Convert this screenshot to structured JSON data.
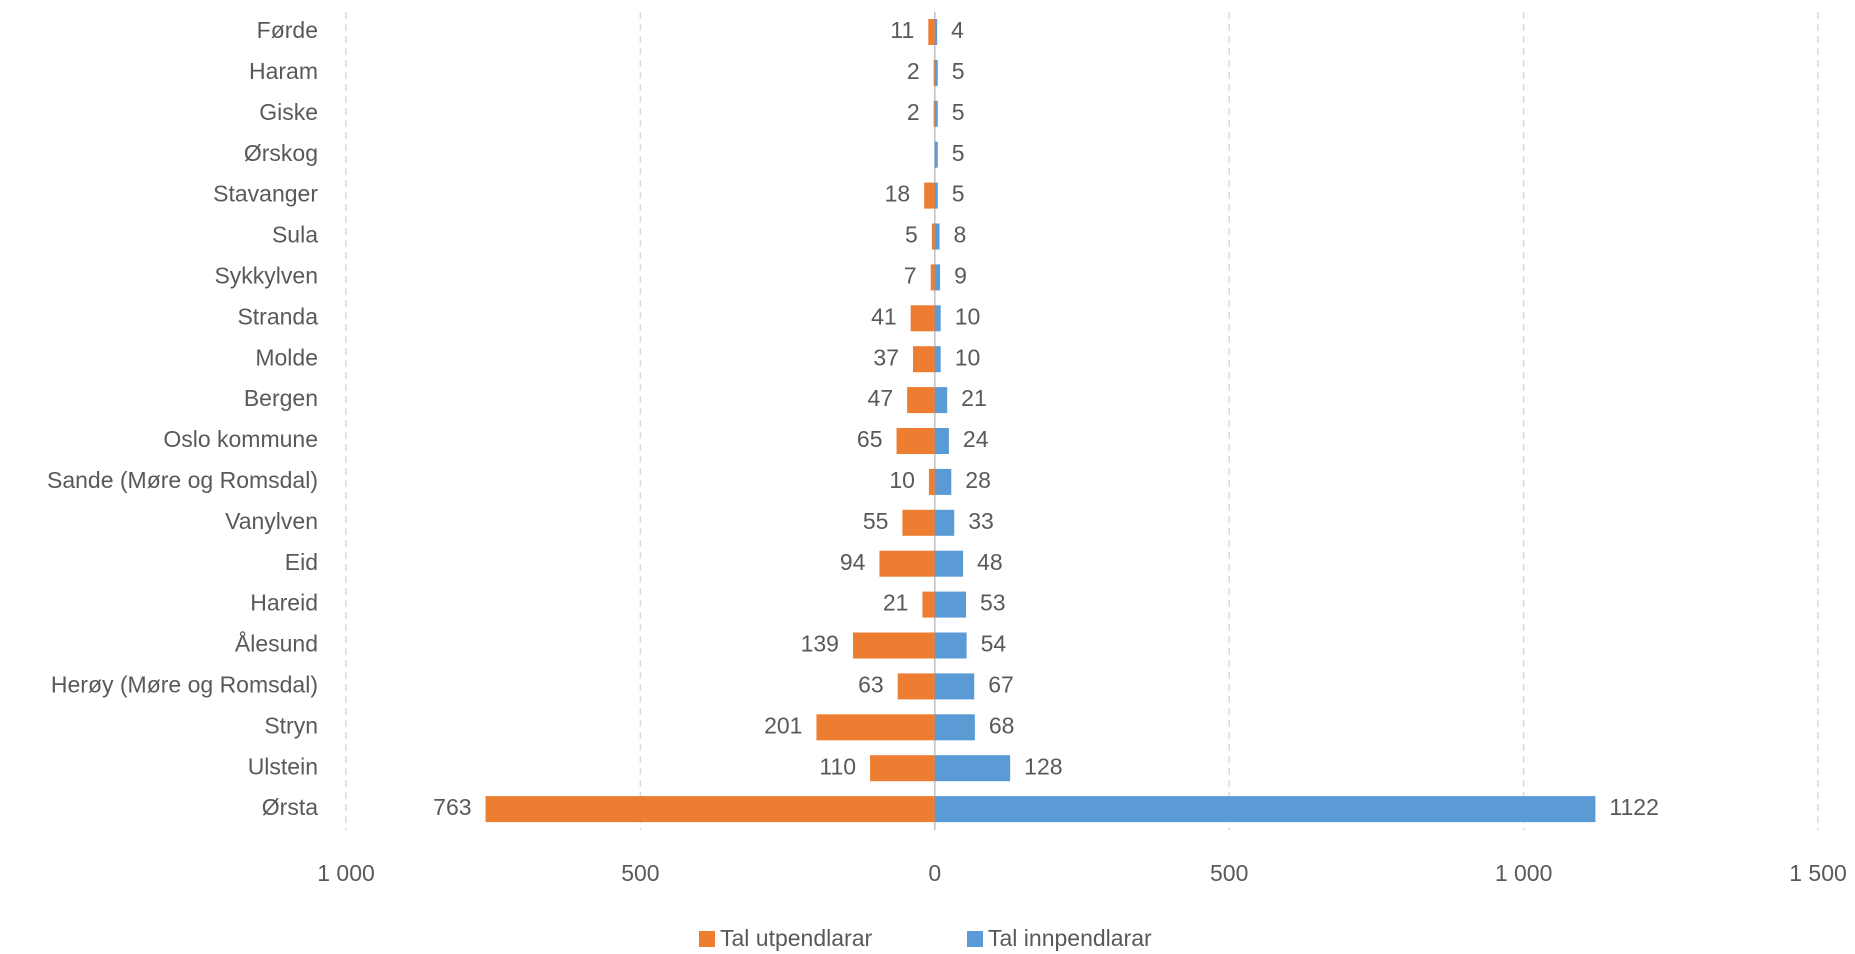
{
  "chart_data": {
    "type": "bar",
    "orientation": "horizontal",
    "categories": [
      "Førde",
      "Haram",
      "Giske",
      "Ørskog",
      "Stavanger",
      "Sula",
      "Sykkylven",
      "Stranda",
      "Molde",
      "Bergen",
      "Oslo kommune",
      "Sande (Møre og Romsdal)",
      "Vanylven",
      "Eid",
      "Hareid",
      "Ålesund",
      "Herøy (Møre og Romsdal)",
      "Stryn",
      "Ulstein",
      "Ørsta"
    ],
    "series": [
      {
        "name": "Tal utpendlarar",
        "color": "#ed7d31",
        "values": [
          -11,
          -2,
          -2,
          null,
          -18,
          -5,
          -7,
          -41,
          -37,
          -47,
          -65,
          -10,
          -55,
          -94,
          -21,
          -139,
          -63,
          -201,
          -110,
          -763
        ],
        "value_labels": [
          "11",
          "2",
          "2",
          null,
          "18",
          "5",
          "7",
          "41",
          "37",
          "47",
          "65",
          "10",
          "55",
          "94",
          "21",
          "139",
          "63",
          "201",
          "110",
          "763"
        ]
      },
      {
        "name": "Tal innpendlarar",
        "color": "#5b9bd5",
        "values": [
          4,
          5,
          5,
          5,
          5,
          8,
          9,
          10,
          10,
          21,
          24,
          28,
          33,
          48,
          53,
          54,
          67,
          68,
          128,
          1122
        ]
      }
    ],
    "xlim": [
      -1000,
      1500
    ],
    "xticks": [
      {
        "value": -1000,
        "label": "1 000"
      },
      {
        "value": -500,
        "label": "500"
      },
      0,
      500,
      {
        "value": 1000,
        "label": "1 000"
      },
      {
        "value": 1500,
        "label": "1 500"
      }
    ],
    "grid": true,
    "legend": "bottom"
  }
}
